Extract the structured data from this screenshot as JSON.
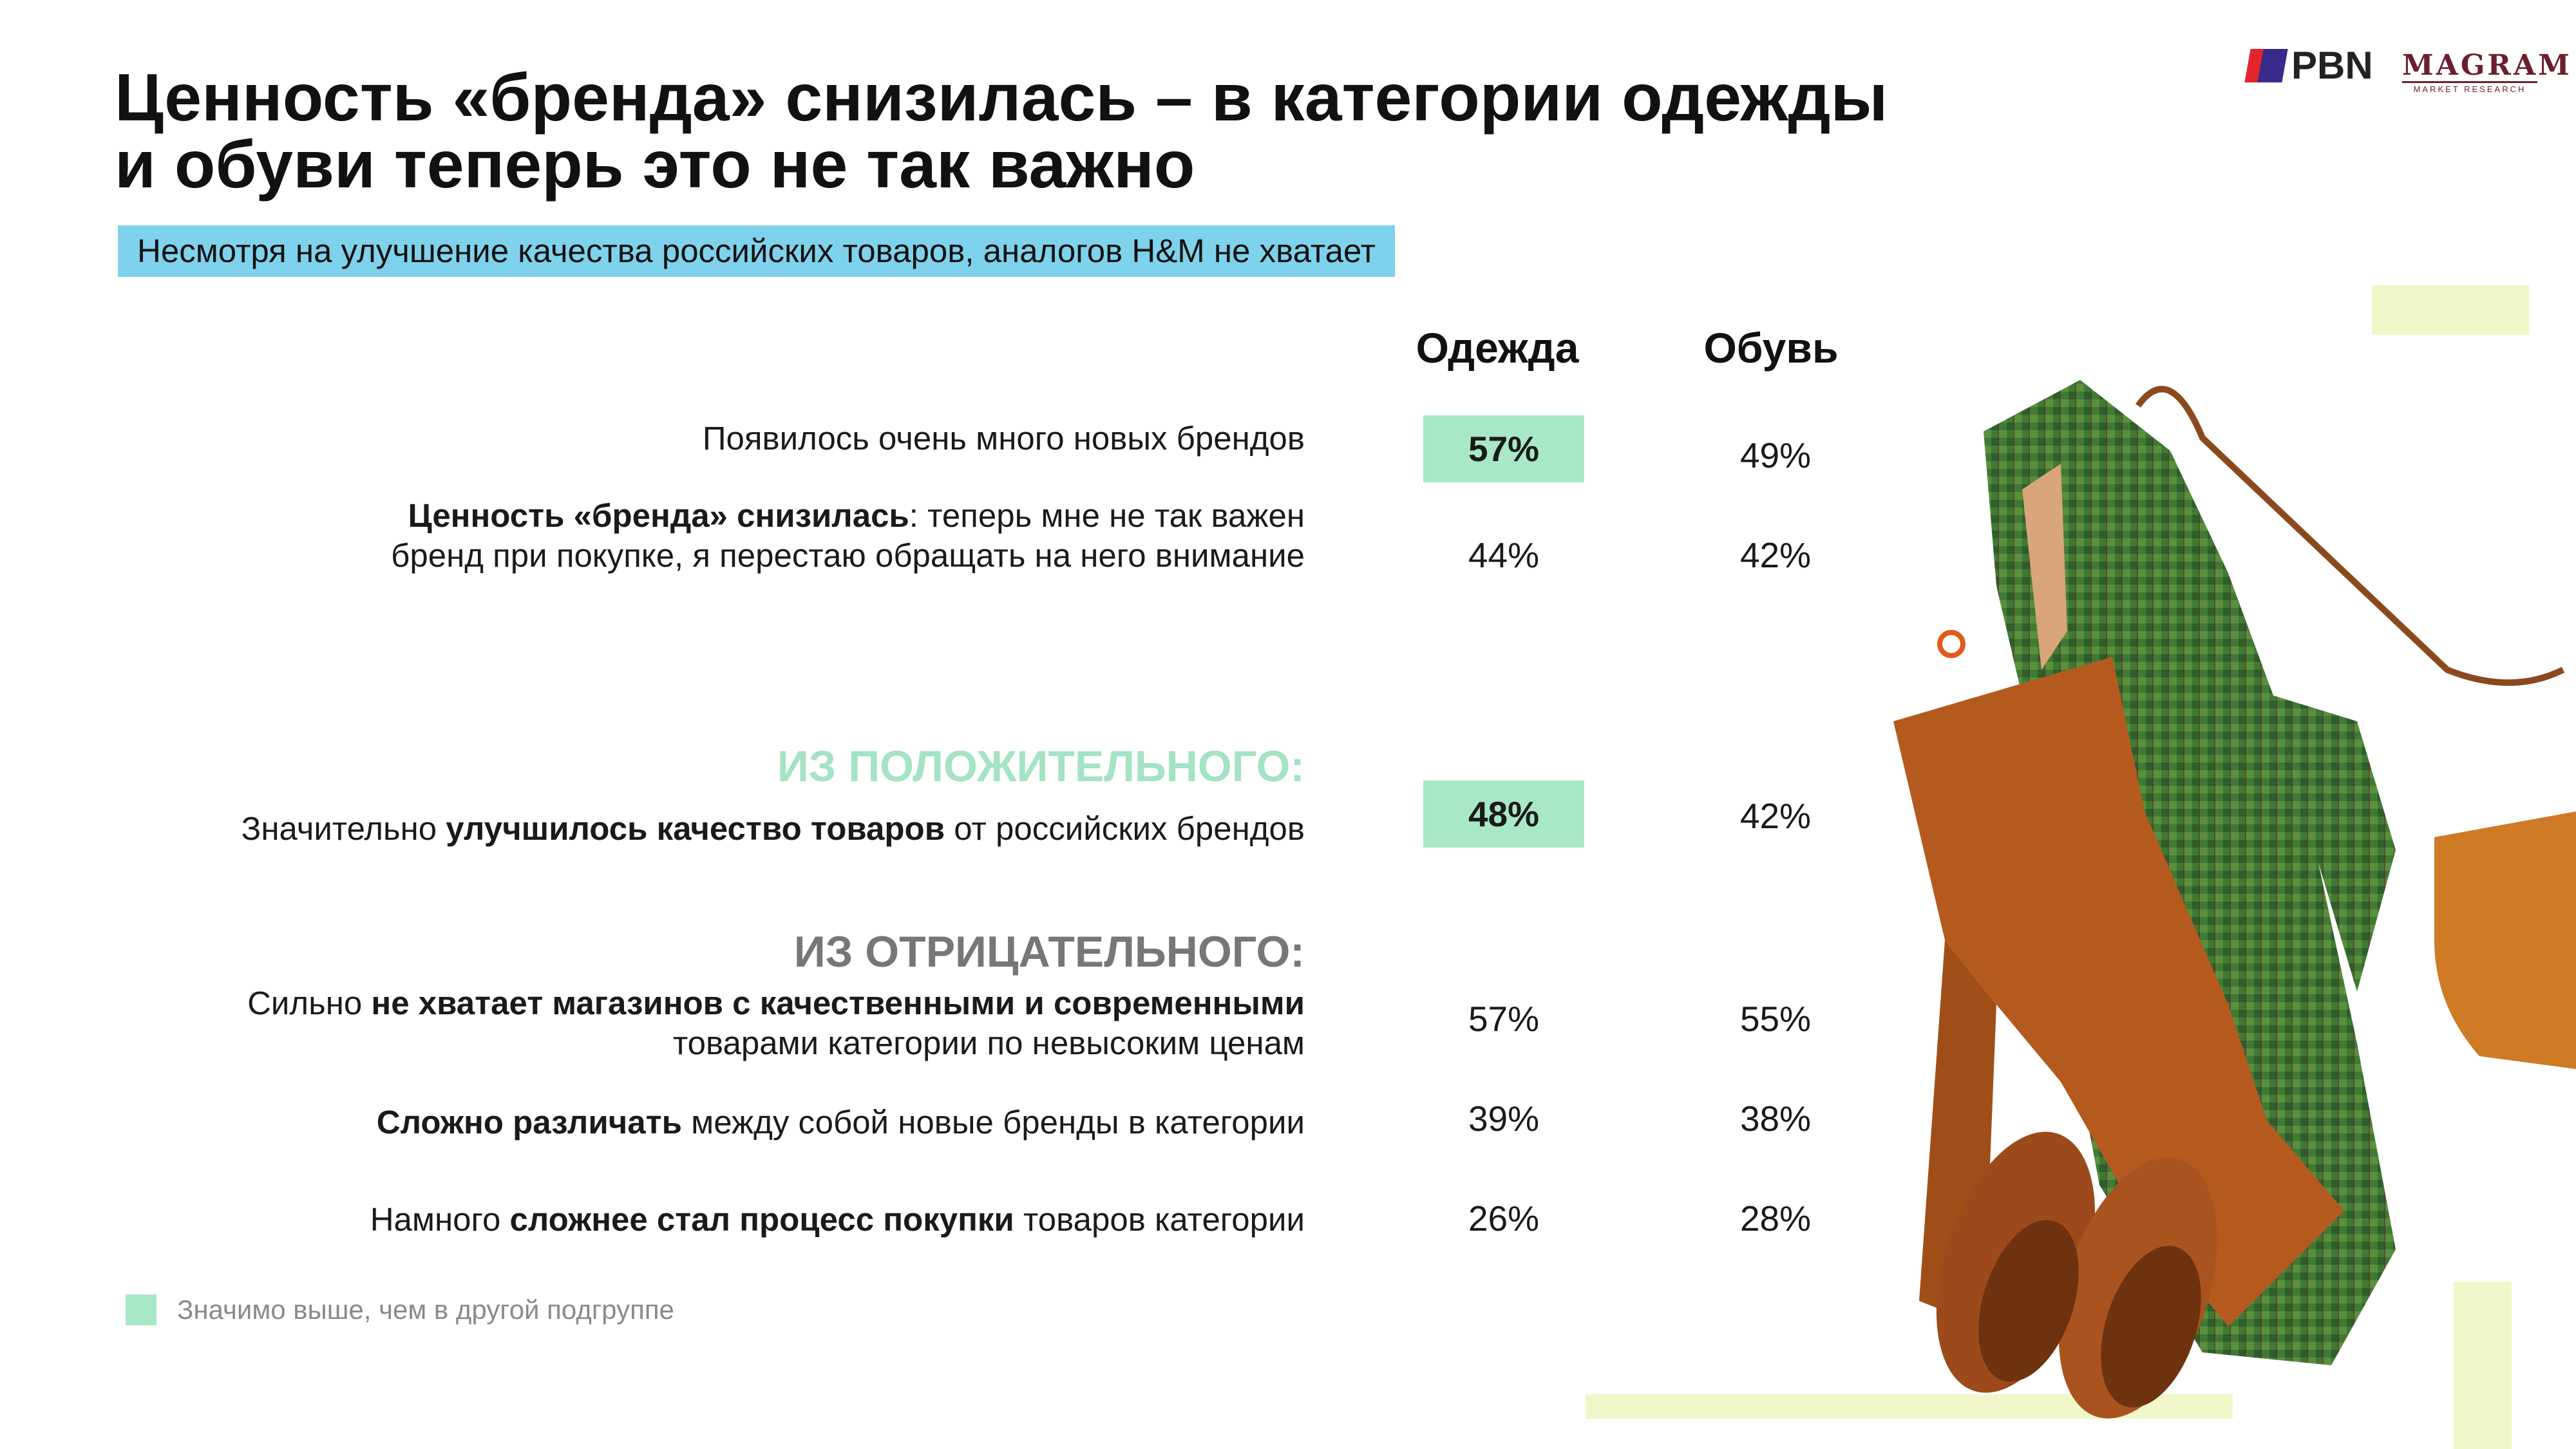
{
  "header": {
    "title_line1": "Ценность «бренда» снизилась – в категории одежды",
    "title_line2": "и обуви теперь это не так важно",
    "subtitle": "Несмотря на улучшение качества российских товаров, аналогов H&M не хватает"
  },
  "logos": {
    "pbn": "PBN",
    "magram": "MAGRAM",
    "magram_sub": "MARKET RESEARCH"
  },
  "columns": [
    "Одежда",
    "Обувь"
  ],
  "rows": {
    "r1": {
      "text": "Появилось очень много новых брендов",
      "clothes": "57%",
      "shoes": "49%"
    },
    "r2": {
      "bold": "Ценность «бренда» снизилась",
      "rest1": ": теперь мне не так важен",
      "line2": "бренд при покупке, я перестаю обращать на него внимание",
      "clothes": "44%",
      "shoes": "42%"
    },
    "r3": {
      "pre": "Значительно ",
      "bold": "улучшилось качество товаров",
      "post": " от российских брендов",
      "clothes": "48%",
      "shoes": "42%"
    },
    "r4": {
      "pre": "Сильно ",
      "bold": "не хватает магазинов с качественными и современными",
      "line2": "товарами категории по невысоким ценам",
      "clothes": "57%",
      "shoes": "55%"
    },
    "r5": {
      "bold": "Сложно различать",
      "post": " между собой новые бренды в категории",
      "clothes": "39%",
      "shoes": "38%"
    },
    "r6": {
      "pre": "Намного ",
      "bold": "сложнее стал процесс покупки",
      "post": " товаров категории",
      "clothes": "26%",
      "shoes": "28%"
    }
  },
  "sections": {
    "positive": "ИЗ ПОЛОЖИТЕЛЬНОГО:",
    "negative": "ИЗ ОТРИЦАТЕЛЬНОГО:"
  },
  "legend": {
    "text": "Значимо выше, чем в другой подгруппе",
    "color": "#a8e8c7"
  },
  "colors": {
    "subtitle_bg": "#7ed2ec",
    "highlight": "#a8e8c7",
    "accent_deco": "#f2f7c9"
  }
}
